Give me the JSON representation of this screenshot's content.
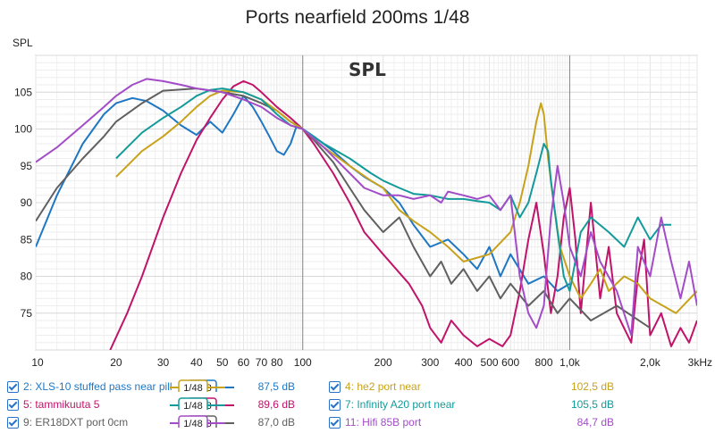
{
  "chart_data": {
    "type": "line",
    "title": "Ports nearfield 200ms 1/48",
    "ylabel": "SPL",
    "watermark": "SPL",
    "xscale": "log",
    "xlim": [
      10,
      3000
    ],
    "ylim": [
      70,
      110
    ],
    "grid": true,
    "x_ticks": [
      {
        "v": 10,
        "label": "10"
      },
      {
        "v": 20,
        "label": "20"
      },
      {
        "v": 30,
        "label": "30"
      },
      {
        "v": 40,
        "label": "40"
      },
      {
        "v": 50,
        "label": "50"
      },
      {
        "v": 60,
        "label": "60"
      },
      {
        "v": 70,
        "label": "70"
      },
      {
        "v": 80,
        "label": "80"
      },
      {
        "v": 100,
        "label": "100"
      },
      {
        "v": 200,
        "label": "200"
      },
      {
        "v": 300,
        "label": "300"
      },
      {
        "v": 400,
        "label": "400"
      },
      {
        "v": 500,
        "label": "500"
      },
      {
        "v": 600,
        "label": "600"
      },
      {
        "v": 800,
        "label": "800"
      },
      {
        "v": 1000,
        "label": "1,0k"
      },
      {
        "v": 2000,
        "label": "2,0k"
      },
      {
        "v": 3000,
        "label": "3kHz"
      }
    ],
    "y_ticks": [
      {
        "v": 75,
        "label": "75"
      },
      {
        "v": 80,
        "label": "80"
      },
      {
        "v": 85,
        "label": "85"
      },
      {
        "v": 90,
        "label": "90"
      },
      {
        "v": 95,
        "label": "95"
      },
      {
        "v": 100,
        "label": "100"
      },
      {
        "v": 105,
        "label": "105"
      }
    ],
    "series": [
      {
        "name": "2: XLS-10 stuffed pass near pill",
        "color": "#1f77c4",
        "smoothing": "1/48",
        "value": "87,5 dB",
        "points": [
          [
            10,
            84
          ],
          [
            12,
            91
          ],
          [
            15,
            98
          ],
          [
            18,
            102
          ],
          [
            20,
            103.5
          ],
          [
            23,
            104.2
          ],
          [
            26,
            103.8
          ],
          [
            30,
            102.5
          ],
          [
            35,
            100.5
          ],
          [
            40,
            99.2
          ],
          [
            45,
            101
          ],
          [
            50,
            99.5
          ],
          [
            55,
            102
          ],
          [
            60,
            104.5
          ],
          [
            65,
            103
          ],
          [
            70,
            101
          ],
          [
            75,
            99
          ],
          [
            80,
            97
          ],
          [
            85,
            96.5
          ],
          [
            90,
            98
          ],
          [
            95,
            100.5
          ],
          [
            100,
            100
          ],
          [
            110,
            99
          ],
          [
            130,
            97
          ],
          [
            150,
            95
          ],
          [
            170,
            93.5
          ],
          [
            200,
            92
          ],
          [
            230,
            90
          ],
          [
            260,
            87
          ],
          [
            300,
            84
          ],
          [
            350,
            85
          ],
          [
            400,
            83
          ],
          [
            450,
            81
          ],
          [
            500,
            84
          ],
          [
            550,
            80
          ],
          [
            600,
            83
          ],
          [
            700,
            79
          ],
          [
            800,
            80
          ],
          [
            900,
            78
          ],
          [
            1000,
            79
          ]
        ]
      },
      {
        "name": "5: tammikuuta 5",
        "color": "#c0136a",
        "smoothing": "1/48",
        "value": "89,6 dB",
        "points": [
          [
            19,
            70
          ],
          [
            22,
            75
          ],
          [
            25,
            80
          ],
          [
            30,
            88
          ],
          [
            35,
            94
          ],
          [
            40,
            98.5
          ],
          [
            45,
            101.5
          ],
          [
            50,
            104
          ],
          [
            55,
            105.8
          ],
          [
            60,
            106.5
          ],
          [
            65,
            106
          ],
          [
            70,
            105
          ],
          [
            80,
            103
          ],
          [
            90,
            101.5
          ],
          [
            100,
            100
          ],
          [
            110,
            98
          ],
          [
            130,
            94
          ],
          [
            150,
            90
          ],
          [
            170,
            86
          ],
          [
            200,
            83
          ],
          [
            250,
            79
          ],
          [
            280,
            76
          ],
          [
            300,
            73
          ],
          [
            330,
            71
          ],
          [
            360,
            74
          ],
          [
            400,
            72
          ],
          [
            450,
            70.5
          ],
          [
            500,
            71.5
          ],
          [
            560,
            70.5
          ],
          [
            600,
            72
          ],
          [
            650,
            78
          ],
          [
            700,
            85
          ],
          [
            750,
            90
          ],
          [
            800,
            83
          ],
          [
            850,
            75
          ],
          [
            900,
            80
          ],
          [
            950,
            88
          ],
          [
            1000,
            92
          ],
          [
            1050,
            85
          ],
          [
            1100,
            75
          ],
          [
            1200,
            90
          ],
          [
            1300,
            77
          ],
          [
            1400,
            84
          ],
          [
            1500,
            75
          ],
          [
            1700,
            71
          ],
          [
            1800,
            80
          ],
          [
            1900,
            85
          ],
          [
            2000,
            72
          ],
          [
            2200,
            75
          ],
          [
            2400,
            70.5
          ],
          [
            2600,
            73
          ],
          [
            2800,
            71
          ],
          [
            3000,
            74
          ]
        ]
      },
      {
        "name": "9: ER18DXT port 0cm",
        "color": "#606060",
        "smoothing": "1/48",
        "value": "87,0 dB",
        "points": [
          [
            10,
            87.5
          ],
          [
            12,
            92
          ],
          [
            15,
            96
          ],
          [
            18,
            99
          ],
          [
            20,
            101
          ],
          [
            25,
            103.5
          ],
          [
            30,
            105.2
          ],
          [
            40,
            105.5
          ],
          [
            50,
            105
          ],
          [
            60,
            104.5
          ],
          [
            70,
            103.5
          ],
          [
            80,
            102.5
          ],
          [
            90,
            101
          ],
          [
            100,
            100
          ],
          [
            110,
            98.5
          ],
          [
            130,
            95.5
          ],
          [
            150,
            92
          ],
          [
            170,
            89
          ],
          [
            200,
            86
          ],
          [
            230,
            88
          ],
          [
            260,
            84
          ],
          [
            300,
            80
          ],
          [
            330,
            82
          ],
          [
            360,
            79
          ],
          [
            400,
            81
          ],
          [
            450,
            78
          ],
          [
            500,
            80
          ],
          [
            550,
            77
          ],
          [
            600,
            79
          ],
          [
            700,
            76
          ],
          [
            800,
            78
          ],
          [
            900,
            75
          ],
          [
            1000,
            77
          ],
          [
            1200,
            74
          ],
          [
            1500,
            76
          ],
          [
            2000,
            73
          ]
        ]
      },
      {
        "name": "4: he2 port near",
        "color": "#c8a21a",
        "smoothing": "1/48",
        "value": "102,5 dB",
        "points": [
          [
            20,
            93.5
          ],
          [
            22,
            95
          ],
          [
            25,
            97
          ],
          [
            30,
            99
          ],
          [
            35,
            101
          ],
          [
            40,
            103
          ],
          [
            45,
            104.5
          ],
          [
            50,
            105.2
          ],
          [
            60,
            105
          ],
          [
            70,
            104
          ],
          [
            80,
            102.5
          ],
          [
            90,
            101
          ],
          [
            100,
            100
          ],
          [
            120,
            97.5
          ],
          [
            150,
            95
          ],
          [
            180,
            93
          ],
          [
            200,
            92
          ],
          [
            230,
            89
          ],
          [
            260,
            87.5
          ],
          [
            300,
            86
          ],
          [
            350,
            84
          ],
          [
            400,
            82
          ],
          [
            500,
            83
          ],
          [
            600,
            86
          ],
          [
            650,
            90
          ],
          [
            700,
            95
          ],
          [
            750,
            101
          ],
          [
            780,
            103.5
          ],
          [
            800,
            102
          ],
          [
            830,
            96
          ],
          [
            870,
            90
          ],
          [
            920,
            84
          ],
          [
            1000,
            80
          ],
          [
            1100,
            77
          ],
          [
            1200,
            79
          ],
          [
            1300,
            81
          ],
          [
            1400,
            78
          ],
          [
            1600,
            80
          ],
          [
            1800,
            79
          ],
          [
            2000,
            77
          ],
          [
            2500,
            75
          ],
          [
            3000,
            78
          ]
        ]
      },
      {
        "name": "7: Infinity A20 port near",
        "color": "#149a9a",
        "smoothing": "1/48",
        "value": "105,5 dB",
        "points": [
          [
            20,
            96
          ],
          [
            22,
            97.5
          ],
          [
            25,
            99.5
          ],
          [
            30,
            101.5
          ],
          [
            35,
            103
          ],
          [
            40,
            104.5
          ],
          [
            45,
            105.3
          ],
          [
            50,
            105.5
          ],
          [
            60,
            105
          ],
          [
            70,
            104
          ],
          [
            80,
            102
          ],
          [
            90,
            100.5
          ],
          [
            100,
            100
          ],
          [
            120,
            98
          ],
          [
            150,
            96
          ],
          [
            180,
            94
          ],
          [
            200,
            93
          ],
          [
            230,
            92
          ],
          [
            260,
            91.2
          ],
          [
            300,
            91
          ],
          [
            350,
            90.5
          ],
          [
            400,
            90.5
          ],
          [
            450,
            90.2
          ],
          [
            500,
            90
          ],
          [
            550,
            89
          ],
          [
            600,
            91
          ],
          [
            650,
            88
          ],
          [
            700,
            90
          ],
          [
            750,
            94
          ],
          [
            800,
            98
          ],
          [
            830,
            97
          ],
          [
            850,
            93
          ],
          [
            900,
            86
          ],
          [
            950,
            80
          ],
          [
            1000,
            78
          ],
          [
            1100,
            86
          ],
          [
            1200,
            88
          ],
          [
            1400,
            86
          ],
          [
            1600,
            84
          ],
          [
            1800,
            88
          ],
          [
            2000,
            85
          ],
          [
            2200,
            87
          ],
          [
            2400,
            87
          ]
        ]
      },
      {
        "name": "11: Hifi 85B port",
        "color": "#a24cc8",
        "smoothing": "1/48",
        "value": "84,7 dB",
        "points": [
          [
            10,
            95.5
          ],
          [
            12,
            97.5
          ],
          [
            15,
            100.5
          ],
          [
            18,
            103
          ],
          [
            20,
            104.5
          ],
          [
            23,
            106
          ],
          [
            26,
            106.8
          ],
          [
            30,
            106.5
          ],
          [
            35,
            106
          ],
          [
            40,
            105.5
          ],
          [
            50,
            105
          ],
          [
            60,
            104
          ],
          [
            70,
            103
          ],
          [
            80,
            101.5
          ],
          [
            90,
            100.5
          ],
          [
            100,
            100
          ],
          [
            120,
            97.5
          ],
          [
            150,
            94
          ],
          [
            170,
            92
          ],
          [
            200,
            91
          ],
          [
            230,
            91
          ],
          [
            260,
            90.5
          ],
          [
            300,
            91
          ],
          [
            330,
            90
          ],
          [
            350,
            91.5
          ],
          [
            400,
            91
          ],
          [
            450,
            90.5
          ],
          [
            500,
            91
          ],
          [
            550,
            89
          ],
          [
            600,
            91
          ],
          [
            650,
            80
          ],
          [
            700,
            75
          ],
          [
            750,
            73
          ],
          [
            800,
            76
          ],
          [
            850,
            88
          ],
          [
            900,
            95
          ],
          [
            950,
            90
          ],
          [
            1000,
            84
          ],
          [
            1100,
            80
          ],
          [
            1200,
            86
          ],
          [
            1300,
            82
          ],
          [
            1500,
            78
          ],
          [
            1700,
            72
          ],
          [
            1800,
            84
          ],
          [
            2000,
            80
          ],
          [
            2200,
            88
          ],
          [
            2400,
            82
          ],
          [
            2600,
            77
          ],
          [
            2800,
            82
          ],
          [
            3000,
            76
          ]
        ]
      }
    ]
  }
}
